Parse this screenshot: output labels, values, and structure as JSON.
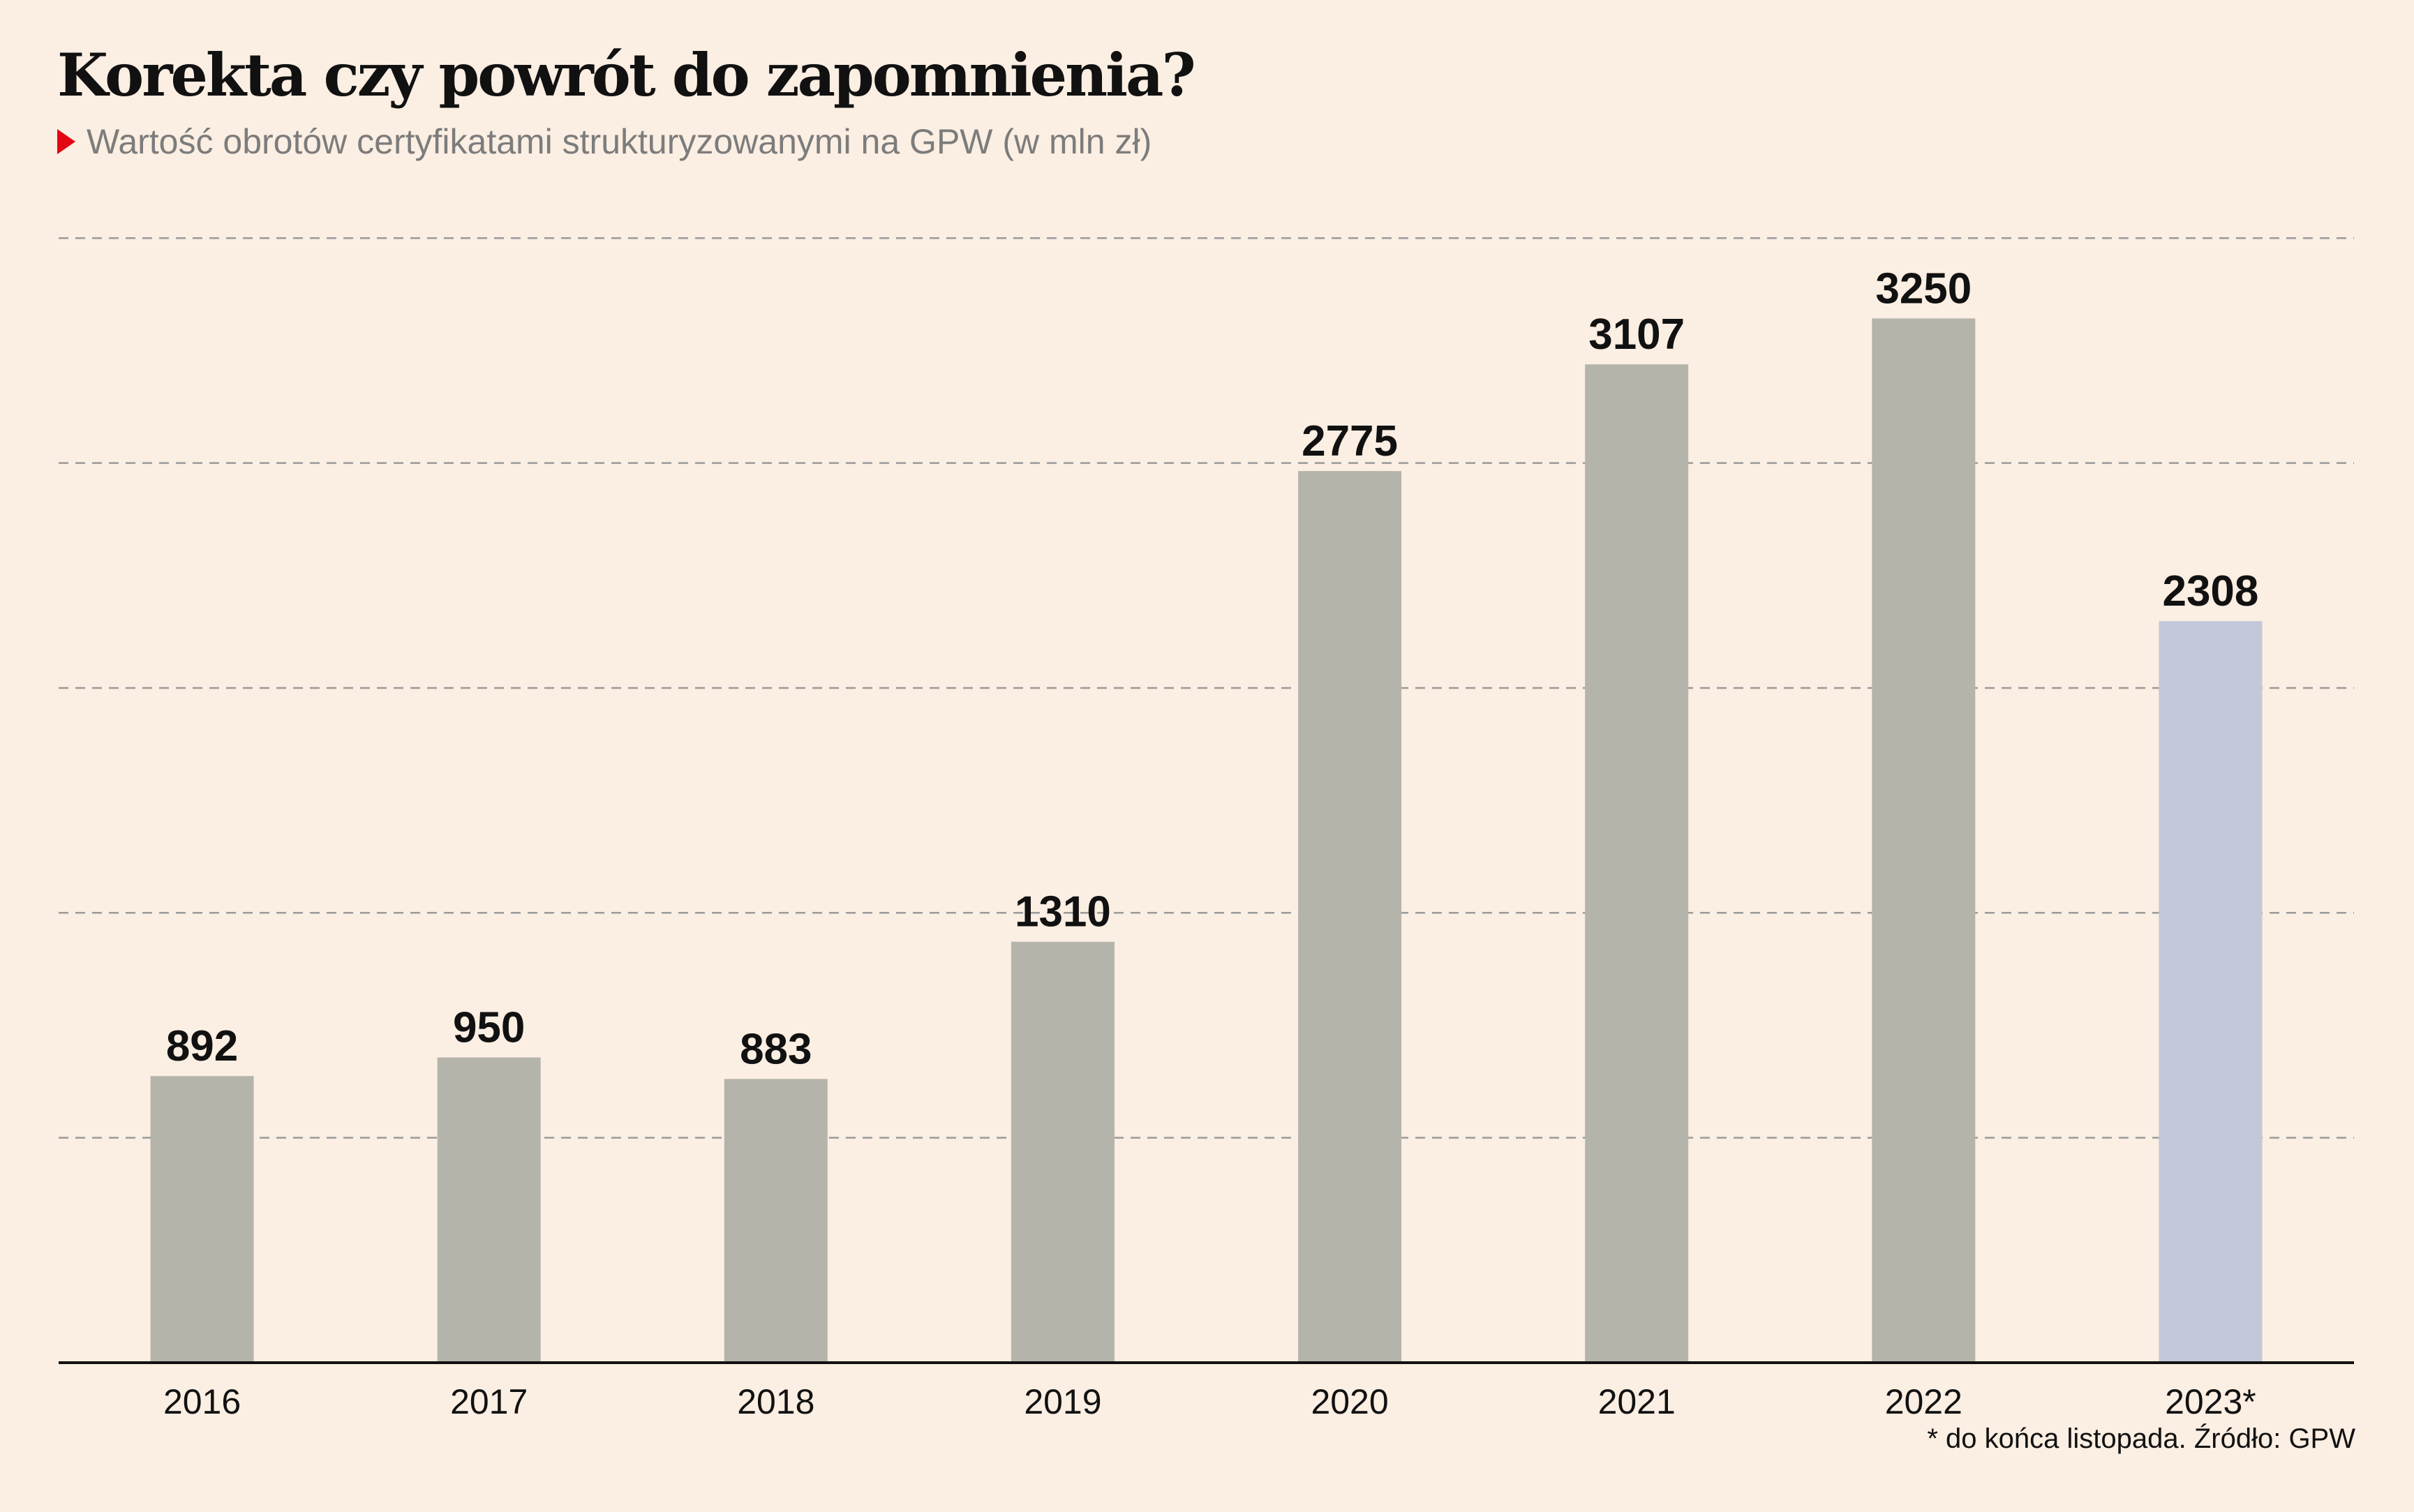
{
  "chart_data": {
    "type": "bar",
    "title": "Korekta czy powrót do zapomnienia?",
    "subtitle": "Wartość obrotów certyfikatami strukturyzowanymi na GPW (w mln zł)",
    "categories": [
      "2016",
      "2017",
      "2018",
      "2019",
      "2020",
      "2021",
      "2022",
      "2023*"
    ],
    "values": [
      892,
      950,
      883,
      1310,
      2775,
      3107,
      3250,
      2308
    ],
    "data_labels": [
      "892",
      "950",
      "883",
      "1310",
      "2775",
      "3107",
      "3250",
      "2308"
    ],
    "ylim": [
      0,
      3500
    ],
    "grid": true,
    "gridlines": [
      700,
      1400,
      2100,
      2800,
      3500
    ],
    "bar_colors": [
      "#b5b4ab",
      "#b5b4ab",
      "#b5b4ab",
      "#b5b4ab",
      "#b5b4ab",
      "#b5b4ab",
      "#b5b4ab",
      "#c2c8d8"
    ],
    "footnote": "* do końca listopada. Źródło: GPW"
  },
  "colors": {
    "background": "#fbeee2",
    "bar": "#b5b4ab",
    "bar_highlight": "#c2c8d8",
    "marker": "#e30613",
    "subtitle": "#7c7c7c"
  }
}
